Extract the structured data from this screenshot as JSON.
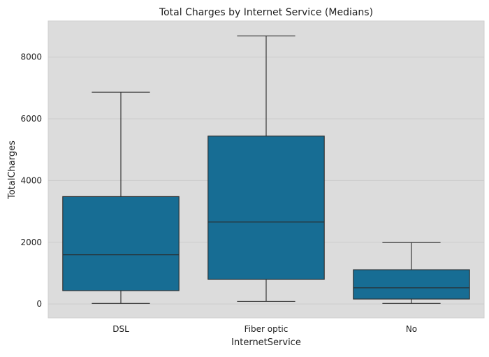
{
  "chart_data": {
    "type": "box",
    "title": "Total Charges by Internet Service (Medians)",
    "xlabel": "InternetService",
    "ylabel": "TotalCharges",
    "categories": [
      "DSL",
      "Fiber optic",
      "No"
    ],
    "boxes": [
      {
        "category": "DSL",
        "whisker_low": 19,
        "q1": 432,
        "median": 1595,
        "q3": 3480,
        "whisker_high": 6860
      },
      {
        "category": "Fiber optic",
        "whisker_low": 85,
        "q1": 797,
        "median": 2655,
        "q3": 5440,
        "whisker_high": 8685
      },
      {
        "category": "No",
        "whisker_low": 19,
        "q1": 160,
        "median": 525,
        "q3": 1110,
        "whisker_high": 1990
      }
    ],
    "ylim": [
      -450,
      9170
    ],
    "yticks": [
      0,
      2000,
      4000,
      6000,
      8000
    ],
    "grid": true,
    "legend": "none",
    "colors": {
      "box_fill": "#176d94",
      "box_edge": "#2b2b2b",
      "plot_background": "#dcdcdc",
      "grid": "#cbcbcb"
    }
  }
}
